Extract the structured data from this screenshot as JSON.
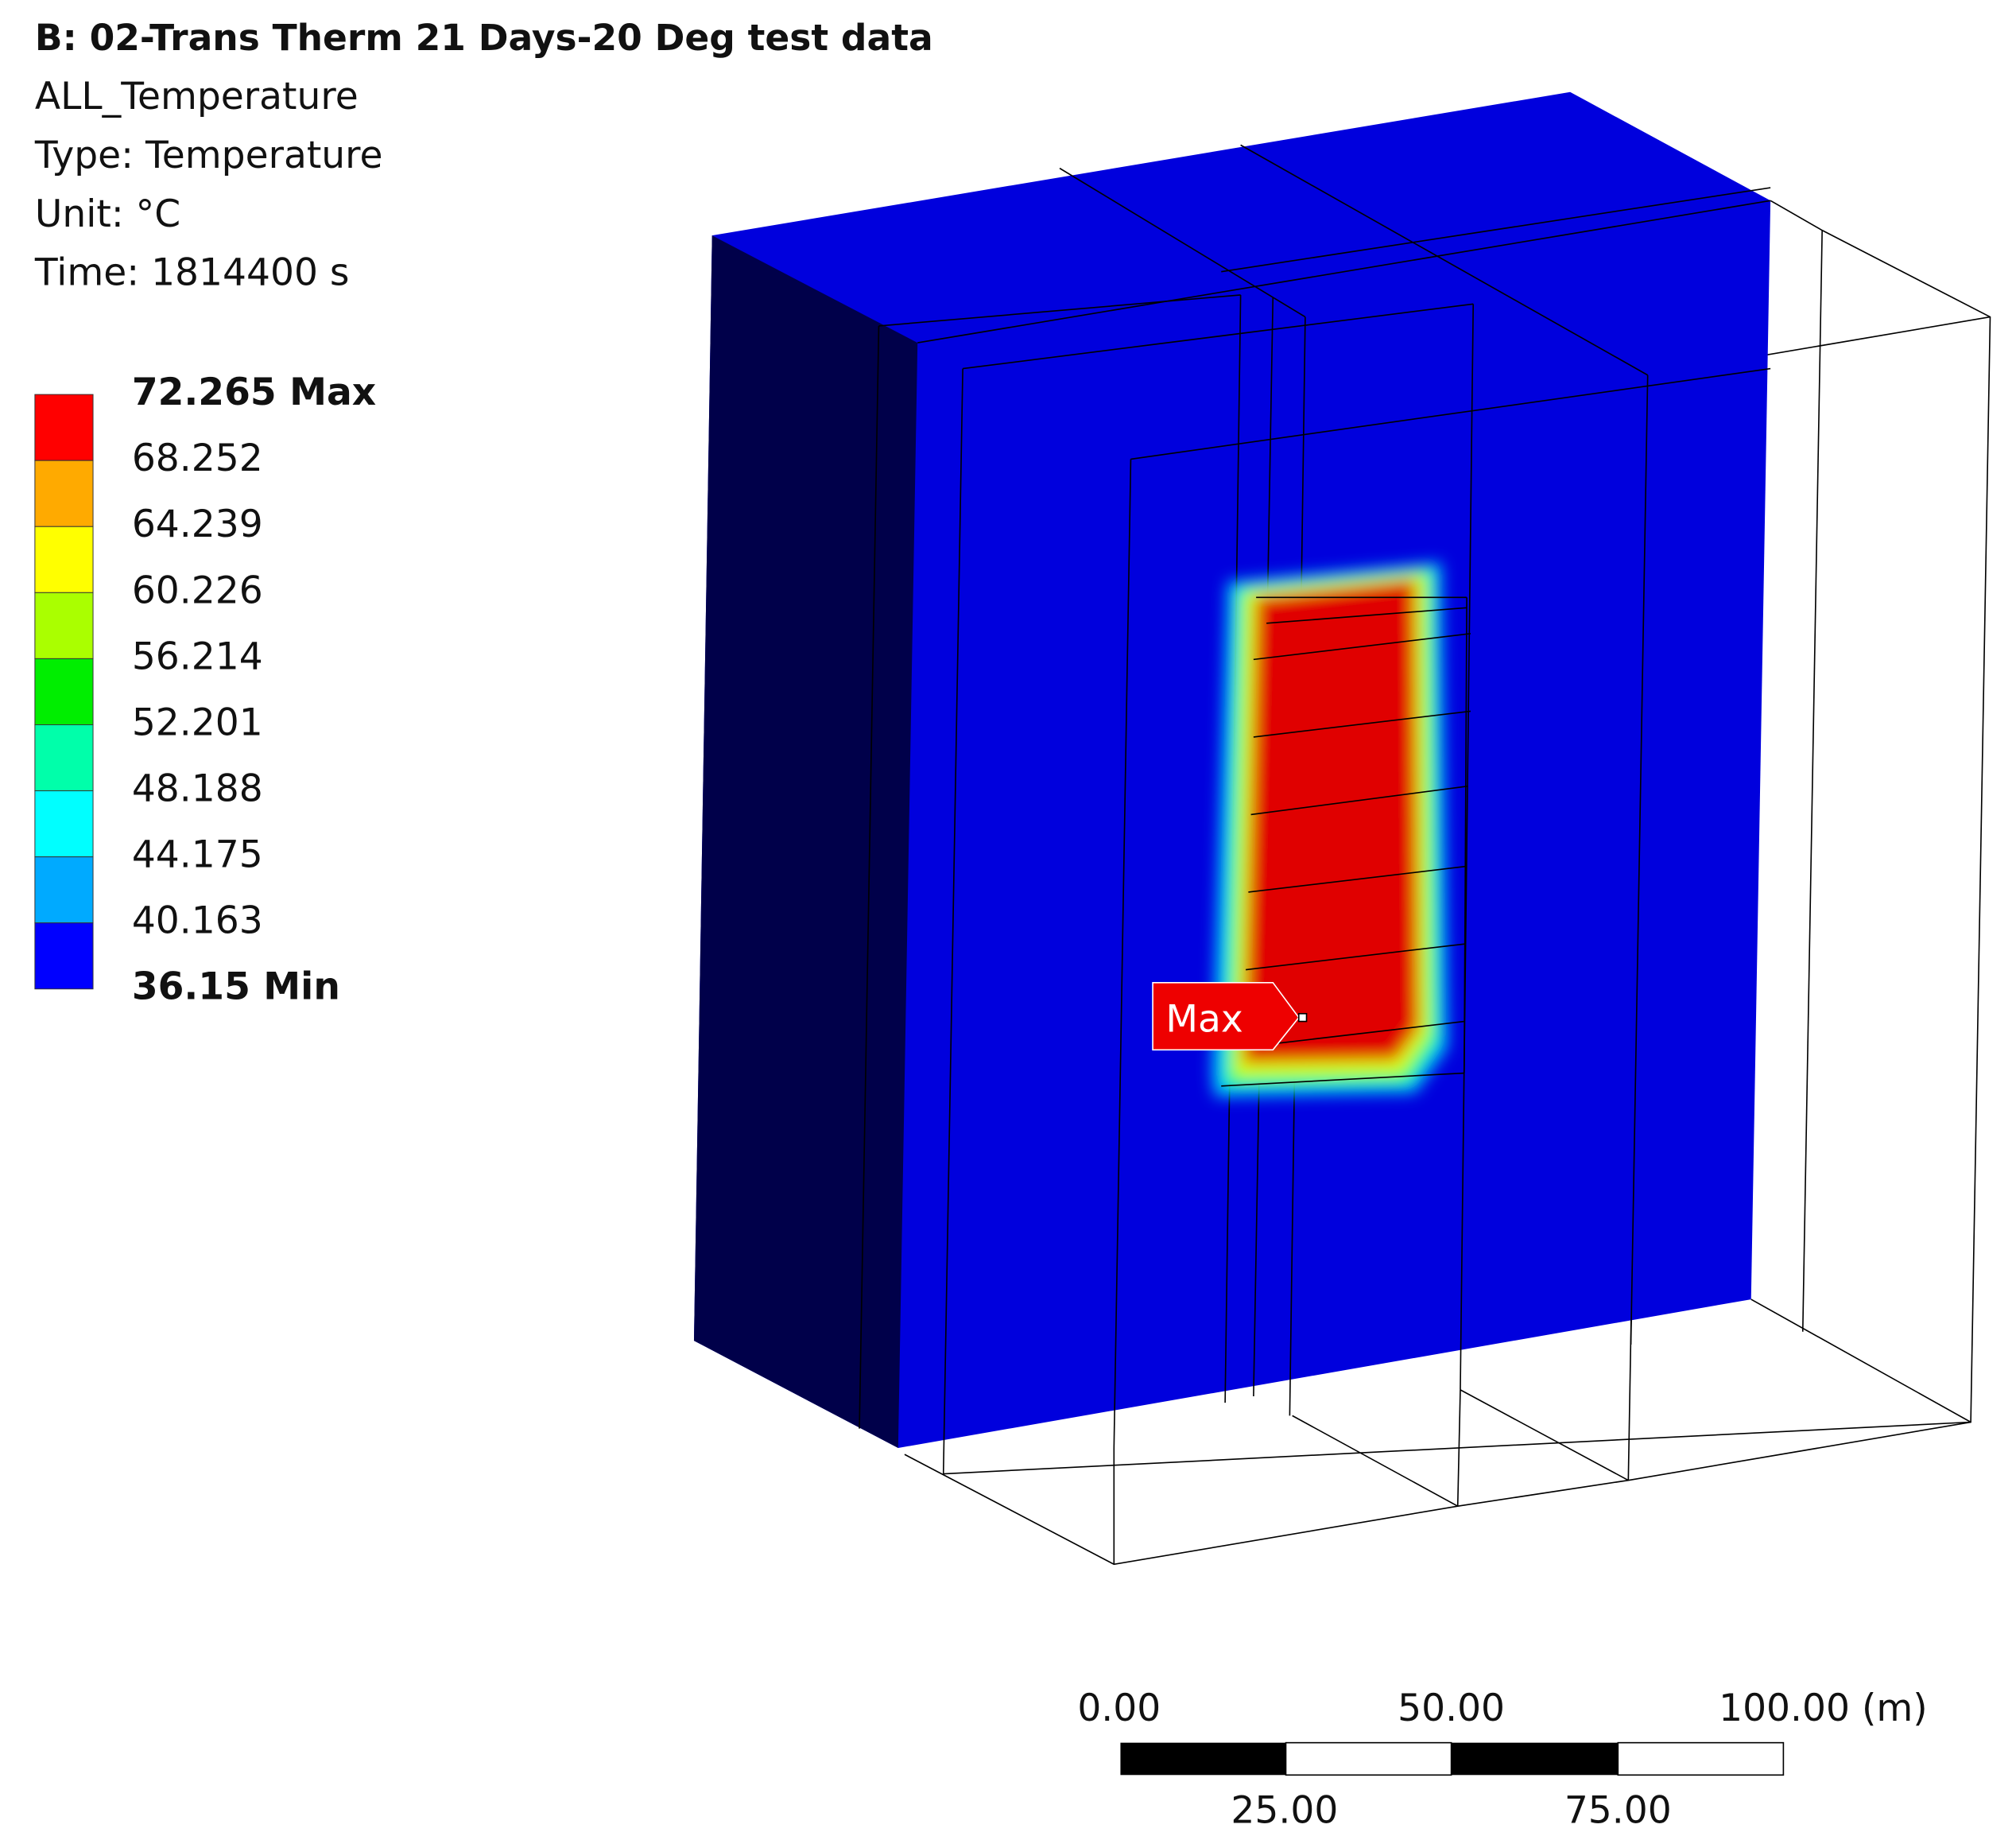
{
  "header": {
    "title": "B: 02-Trans Therm 21 Days-20 Deg test data",
    "lines": [
      "ALL_Temperature",
      "Type: Temperature",
      "Unit: °C",
      "Time: 1814400 s"
    ]
  },
  "legend": {
    "labels": [
      "72.265 Max",
      "68.252",
      "64.239",
      "60.226",
      "56.214",
      "52.201",
      "48.188",
      "44.175",
      "40.163",
      "36.15 Min"
    ],
    "colors": [
      "#ff0000",
      "#ffaa00",
      "#ffff00",
      "#aaff00",
      "#00ee00",
      "#00ffaa",
      "#00ffff",
      "#00aaff",
      "#0000ff"
    ]
  },
  "probe": {
    "label": "Max"
  },
  "scale_bar": {
    "top_labels": [
      "0.00",
      "50.00",
      "100.00 (m)"
    ],
    "bottom_labels": [
      "25.00",
      "75.00"
    ]
  }
}
